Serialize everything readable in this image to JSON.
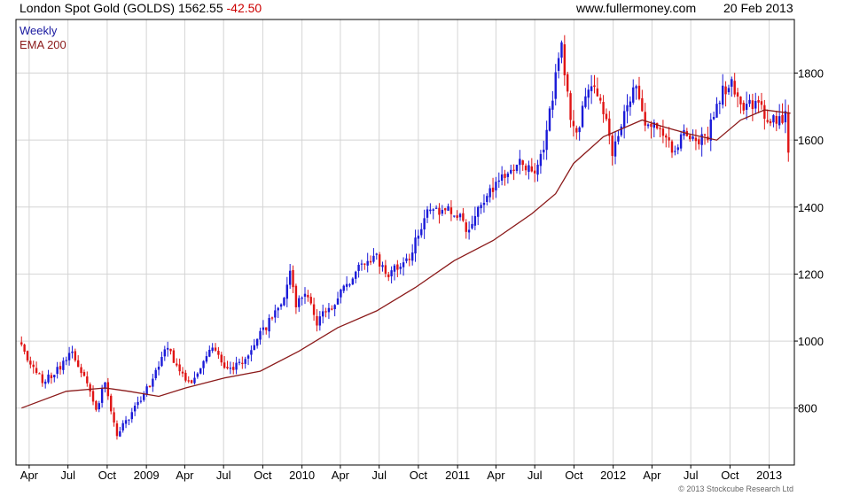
{
  "header": {
    "instrument": "London Spot Gold (GOLDS)",
    "last_price": "1562.55",
    "change": "-42.50",
    "website": "www.fullermoney.com",
    "date": "20 Feb 2013"
  },
  "legend": {
    "weekly": "Weekly",
    "ema": "EMA 200"
  },
  "copyright": "© 2013 Stockcube Research Ltd",
  "colors": {
    "up_candle": "#1a1ad8",
    "down_candle": "#e01414",
    "ema_line": "#8b1a1a",
    "change_text": "#cc0000",
    "legend_weekly": "#1a1aa0",
    "legend_ema": "#8b1a1a",
    "grid": "#d4d4d4"
  },
  "chart_data": {
    "type": "candlestick",
    "title": "London Spot Gold (GOLDS)",
    "interval": "weekly",
    "x_range": [
      "2008-03-01",
      "2013-03-01"
    ],
    "ylim": [
      630,
      1960
    ],
    "y_ticks": [
      800,
      1000,
      1200,
      1400,
      1600,
      1800
    ],
    "y_axis_side": "right",
    "grid": true,
    "legend_placement": "top-left",
    "x_ticks": [
      {
        "label": "Apr",
        "date": "2008-04-01"
      },
      {
        "label": "Jul",
        "date": "2008-07-01"
      },
      {
        "label": "Oct",
        "date": "2008-10-01"
      },
      {
        "label": "2009",
        "date": "2009-01-01"
      },
      {
        "label": "Apr",
        "date": "2009-04-01"
      },
      {
        "label": "Jul",
        "date": "2009-07-01"
      },
      {
        "label": "Oct",
        "date": "2009-10-01"
      },
      {
        "label": "2010",
        "date": "2010-01-01"
      },
      {
        "label": "Apr",
        "date": "2010-04-01"
      },
      {
        "label": "Jul",
        "date": "2010-07-01"
      },
      {
        "label": "Oct",
        "date": "2010-10-01"
      },
      {
        "label": "2011",
        "date": "2011-01-01"
      },
      {
        "label": "Apr",
        "date": "2011-04-01"
      },
      {
        "label": "Jul",
        "date": "2011-07-01"
      },
      {
        "label": "Oct",
        "date": "2011-10-01"
      },
      {
        "label": "2012",
        "date": "2012-01-01"
      },
      {
        "label": "Apr",
        "date": "2012-04-01"
      },
      {
        "label": "Jul",
        "date": "2012-07-01"
      },
      {
        "label": "Oct",
        "date": "2012-10-01"
      },
      {
        "label": "2013",
        "date": "2013-01-01"
      }
    ],
    "price_path": [
      [
        "2008-03-14",
        1000
      ],
      [
        "2008-03-28",
        940
      ],
      [
        "2008-05-02",
        880
      ],
      [
        "2008-05-30",
        900
      ],
      [
        "2008-07-11",
        970
      ],
      [
        "2008-08-08",
        890
      ],
      [
        "2008-09-05",
        790
      ],
      [
        "2008-09-26",
        880
      ],
      [
        "2008-10-24",
        720
      ],
      [
        "2008-11-14",
        760
      ],
      [
        "2008-12-12",
        810
      ],
      [
        "2009-01-09",
        870
      ],
      [
        "2009-02-20",
        990
      ],
      [
        "2009-03-13",
        920
      ],
      [
        "2009-04-17",
        875
      ],
      [
        "2009-05-22",
        950
      ],
      [
        "2009-06-05",
        980
      ],
      [
        "2009-07-10",
        915
      ],
      [
        "2009-08-14",
        940
      ],
      [
        "2009-09-18",
        1005
      ],
      [
        "2009-10-16",
        1060
      ],
      [
        "2009-11-13",
        1110
      ],
      [
        "2009-12-04",
        1210
      ],
      [
        "2009-12-18",
        1110
      ],
      [
        "2010-01-15",
        1140
      ],
      [
        "2010-02-05",
        1060
      ],
      [
        "2010-03-12",
        1110
      ],
      [
        "2010-04-09",
        1150
      ],
      [
        "2010-05-14",
        1230
      ],
      [
        "2010-06-25",
        1250
      ],
      [
        "2010-07-23",
        1190
      ],
      [
        "2010-08-13",
        1220
      ],
      [
        "2010-09-10",
        1250
      ],
      [
        "2010-10-15",
        1370
      ],
      [
        "2010-11-12",
        1390
      ],
      [
        "2010-12-10",
        1390
      ],
      [
        "2011-01-14",
        1360
      ],
      [
        "2011-01-28",
        1320
      ],
      [
        "2011-02-25",
        1410
      ],
      [
        "2011-04-15",
        1480
      ],
      [
        "2011-05-06",
        1500
      ],
      [
        "2011-06-03",
        1540
      ],
      [
        "2011-07-01",
        1490
      ],
      [
        "2011-07-29",
        1620
      ],
      [
        "2011-08-12",
        1740
      ],
      [
        "2011-09-02",
        1880
      ],
      [
        "2011-09-23",
        1650
      ],
      [
        "2011-10-07",
        1620
      ],
      [
        "2011-11-11",
        1780
      ],
      [
        "2011-12-02",
        1740
      ],
      [
        "2011-12-30",
        1560
      ],
      [
        "2012-02-24",
        1780
      ],
      [
        "2012-03-16",
        1650
      ],
      [
        "2012-04-13",
        1650
      ],
      [
        "2012-05-18",
        1560
      ],
      [
        "2012-06-15",
        1620
      ],
      [
        "2012-07-13",
        1580
      ],
      [
        "2012-08-10",
        1620
      ],
      [
        "2012-09-07",
        1730
      ],
      [
        "2012-10-05",
        1780
      ],
      [
        "2012-11-02",
        1680
      ],
      [
        "2012-11-30",
        1720
      ],
      [
        "2012-12-28",
        1655
      ],
      [
        "2013-01-25",
        1670
      ],
      [
        "2013-02-08",
        1665
      ],
      [
        "2013-02-20",
        1562.55
      ]
    ],
    "ema_200": [
      [
        "2008-03-14",
        800
      ],
      [
        "2008-06-27",
        850
      ],
      [
        "2008-09-26",
        860
      ],
      [
        "2008-11-21",
        850
      ],
      [
        "2009-01-30",
        835
      ],
      [
        "2009-04-03",
        860
      ],
      [
        "2009-07-03",
        890
      ],
      [
        "2009-09-25",
        910
      ],
      [
        "2009-12-25",
        970
      ],
      [
        "2010-03-26",
        1040
      ],
      [
        "2010-06-25",
        1090
      ],
      [
        "2010-09-24",
        1160
      ],
      [
        "2010-12-24",
        1240
      ],
      [
        "2011-03-25",
        1300
      ],
      [
        "2011-06-24",
        1380
      ],
      [
        "2011-08-19",
        1440
      ],
      [
        "2011-09-30",
        1530
      ],
      [
        "2011-12-09",
        1610
      ],
      [
        "2012-03-09",
        1660
      ],
      [
        "2012-04-27",
        1640
      ],
      [
        "2012-06-22",
        1620
      ],
      [
        "2012-08-31",
        1600
      ],
      [
        "2012-10-26",
        1660
      ],
      [
        "2012-12-21",
        1690
      ],
      [
        "2013-02-20",
        1680
      ]
    ]
  }
}
